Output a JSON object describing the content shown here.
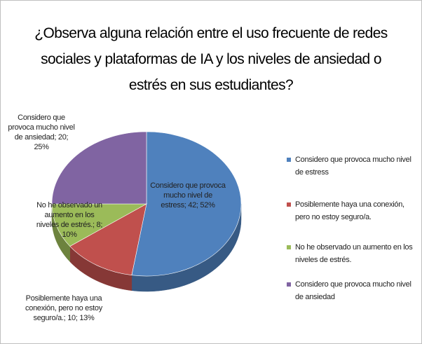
{
  "chart_data": {
    "type": "pie",
    "title": "¿Observa alguna relación entre el uso frecuente de redes sociales y plataformas de IA y los niveles de ansiedad o estrés en sus estudiantes?",
    "categories": [
      "Considero que provoca mucho nivel de estress",
      "Posiblemente haya una conexión, pero no estoy seguro/a.",
      "No he observado un aumento en los niveles de estrés.",
      "Considero que provoca mucho nivel de ansiedad"
    ],
    "values": [
      42,
      10,
      8,
      20
    ],
    "value_labels": [
      "Considero que provoca mucho nivel de estress; 42; 52%",
      "Posiblemente haya una conexión, pero no estoy seguro/a.; 10; 13%",
      "No he observado un aumento en los niveles de estrés.; 8; 10%",
      "Considero que provoca mucho nivel de ansiedad; 20; 25%"
    ],
    "colors": [
      "#4f81bd",
      "#c0504d",
      "#9bbb59",
      "#8064a2"
    ],
    "legend": "right"
  }
}
